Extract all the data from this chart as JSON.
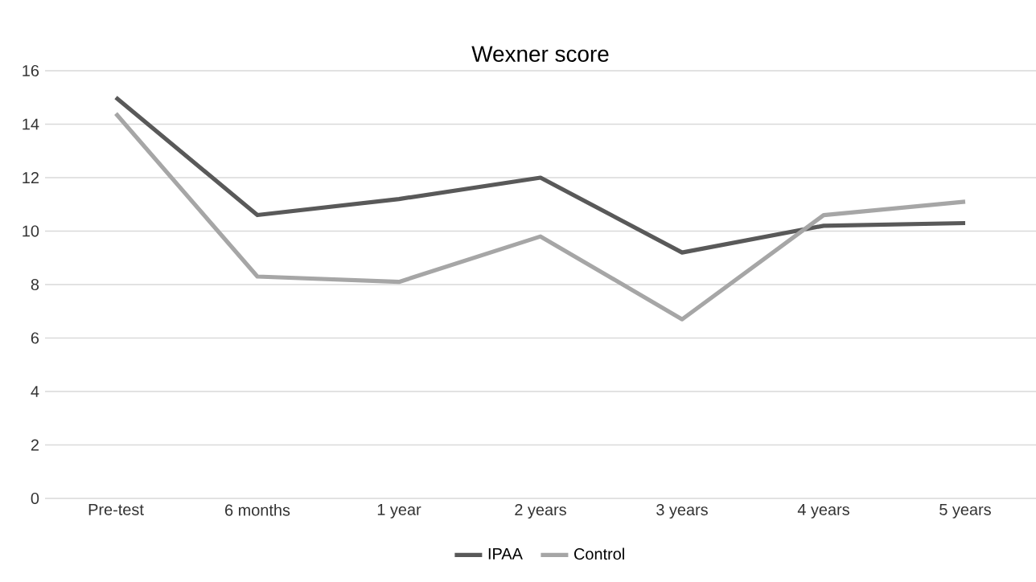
{
  "chart_data": {
    "type": "line",
    "title": "Wexner score",
    "categories": [
      "Pre-test",
      "6 months",
      "1 year",
      "2 years",
      "3 years",
      "4 years",
      "5 years"
    ],
    "series": [
      {
        "name": "IPAA",
        "color": "#595959",
        "values": [
          15,
          10.6,
          11.2,
          12,
          9.2,
          10.2,
          10.3
        ]
      },
      {
        "name": "Control",
        "color": "#a6a6a6",
        "values": [
          14.4,
          8.3,
          8.1,
          9.8,
          6.7,
          10.6,
          11.1
        ]
      }
    ],
    "ylim": [
      0,
      16
    ],
    "yticks": [
      0,
      2,
      4,
      6,
      8,
      10,
      12,
      14,
      16
    ],
    "grid": "y",
    "legend": "bottom",
    "marker": "none",
    "line_style": "solid"
  }
}
